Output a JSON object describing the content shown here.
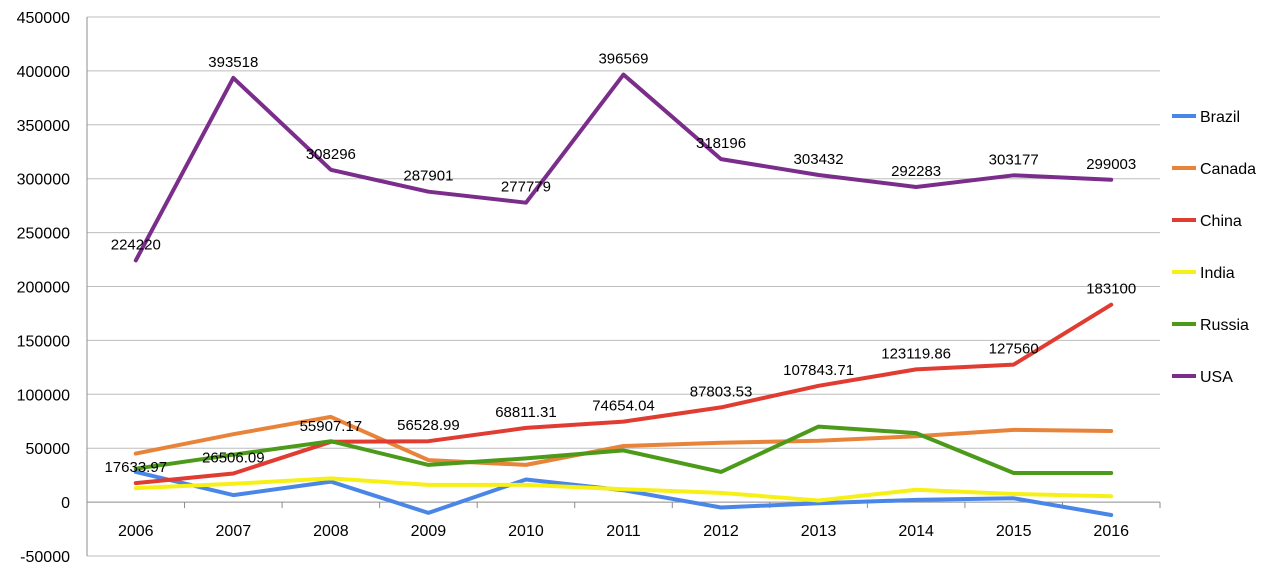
{
  "chart_data": {
    "type": "line",
    "title": "",
    "xlabel": "",
    "ylabel": "",
    "categories": [
      "2006",
      "2007",
      "2008",
      "2009",
      "2010",
      "2011",
      "2012",
      "2013",
      "2014",
      "2015",
      "2016"
    ],
    "ylim": [
      -50000,
      450000
    ],
    "yticks": [
      -50000,
      0,
      50000,
      100000,
      150000,
      200000,
      250000,
      300000,
      350000,
      400000,
      450000
    ],
    "grid": true,
    "legend_position": "right",
    "series": [
      {
        "name": "Brazil",
        "color": "#4a86e8",
        "values": [
          28000,
          6500,
          19000,
          -10000,
          21000,
          11000,
          -5000,
          -1000,
          2000,
          3500,
          -12000
        ]
      },
      {
        "name": "Canada",
        "color": "#e8833a",
        "values": [
          45000,
          63000,
          79000,
          39000,
          34500,
          52000,
          55000,
          57000,
          61000,
          67000,
          66000
        ]
      },
      {
        "name": "China",
        "color": "#e03c31",
        "values": [
          17633.97,
          26506.09,
          55907.17,
          56528.99,
          68811.31,
          74654.04,
          87803.53,
          107843.71,
          123119.86,
          127560,
          183100
        ],
        "labels": [
          "17633.97",
          "26506.09",
          "55907.17",
          "56528.99",
          "68811.31",
          "74654.04",
          "87803.53",
          "107843.71",
          "123119.86",
          "127560",
          "183100"
        ]
      },
      {
        "name": "India",
        "color": "#f7f016",
        "values": [
          13000,
          17000,
          22000,
          16000,
          16000,
          12000,
          8500,
          1500,
          11500,
          7500,
          5500
        ]
      },
      {
        "name": "Russia",
        "color": "#4c9a1a",
        "values": [
          31000,
          44000,
          56500,
          34500,
          40500,
          48000,
          28000,
          70000,
          64000,
          27000,
          27000
        ]
      },
      {
        "name": "USA",
        "color": "#7b2d8b",
        "values": [
          224220,
          393518,
          308296,
          287901,
          277779,
          396569,
          318196,
          303432,
          292283,
          303177,
          299003
        ],
        "labels": [
          "224220",
          "393518",
          "308296",
          "287901",
          "277779",
          "396569",
          "318196",
          "303432",
          "292283",
          "303177",
          "299003"
        ]
      }
    ]
  }
}
